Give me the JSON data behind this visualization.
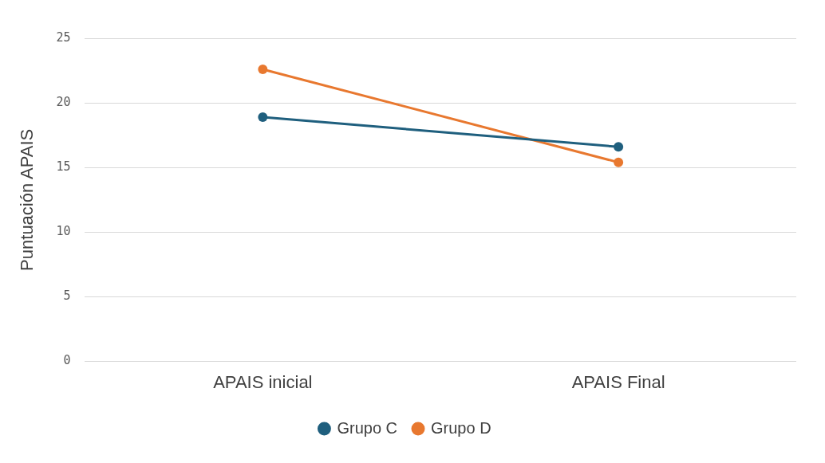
{
  "chart_data": {
    "type": "line",
    "ylabel": "Puntuación APAIS",
    "categories": [
      "APAIS inicial",
      "APAIS Final"
    ],
    "series": [
      {
        "name": "Grupo C",
        "color": "#1f5f7e",
        "values": [
          18.9,
          16.6
        ]
      },
      {
        "name": "Grupo D",
        "color": "#e8782f",
        "values": [
          22.6,
          15.4
        ]
      }
    ],
    "ylim": [
      0,
      25
    ],
    "yticks": [
      0,
      5,
      10,
      15,
      20,
      25
    ],
    "grid": "y",
    "legend": "bottom",
    "marker": "circle",
    "line_style": "solid"
  }
}
